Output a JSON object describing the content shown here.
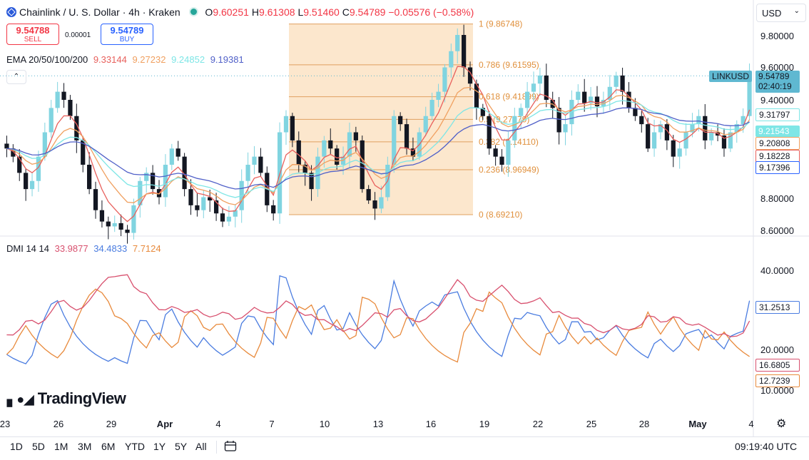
{
  "header": {
    "symbol": "Chainlink / U. S. Dollar · 4h · Kraken",
    "o_label": "O",
    "o_value": "9.60251",
    "h_label": "H",
    "h_value": "9.61308",
    "l_label": "L",
    "l_value": "9.51460",
    "c_label": "C",
    "c_value": "9.54789",
    "change": "−0.05576 (−0.58%)",
    "currency": "USD"
  },
  "trade": {
    "sell_price": "9.54788",
    "sell_label": "SELL",
    "spread": "0.00001",
    "buy_price": "9.54789",
    "buy_label": "BUY"
  },
  "ema_legend": {
    "label": "EMA 20/50/100/200",
    "v20": "9.33144",
    "v50": "9.27232",
    "v100": "9.24852",
    "v200": "9.19381"
  },
  "dmi_legend": {
    "label": "DMI 14 14",
    "adx": "33.9877",
    "plus_di": "34.4833",
    "minus_di": "7.7124"
  },
  "price_axis": [
    "9.80000",
    "9.60000",
    "9.40000",
    "9.20000",
    "9.00000",
    "8.80000",
    "8.60000"
  ],
  "dmi_axis": [
    "40.0000",
    "20.0000",
    "10.0000"
  ],
  "time_axis": [
    "23",
    "26",
    "29",
    "Apr",
    "4",
    "7",
    "10",
    "13",
    "16",
    "19",
    "22",
    "25",
    "28",
    "May",
    "4"
  ],
  "price_tags": {
    "symbol": "LINKUSD",
    "last": "9.54789",
    "countdown": "02:40:19",
    "ema20": "9.31797",
    "ema50": "9.21543",
    "ema100": "9.20808",
    "ema200": "9.18228",
    "extra": "9.17396"
  },
  "dmi_tags": {
    "plus_di": "31.2513",
    "adx": "16.6805",
    "minus_di": "12.7239"
  },
  "fib_levels": [
    {
      "ratio": "1",
      "price": "9.86748",
      "label": "1 (9.86748)"
    },
    {
      "ratio": "0.786",
      "price": "9.61595",
      "label": "0.786 (9.61595)"
    },
    {
      "ratio": "0.618",
      "price": "9.41899",
      "label": "0.618 (9.41899)"
    },
    {
      "ratio": "0.5",
      "price": "9.27979",
      "label": "0.5 (9.27979)"
    },
    {
      "ratio": "0.382",
      "price": "9.14110",
      "label": "0.382 (9.14110)"
    },
    {
      "ratio": "0.236",
      "price": "8.96949",
      "label": "0.236 (8.96949)"
    },
    {
      "ratio": "0",
      "price": "8.69210",
      "label": "0 (8.69210)"
    }
  ],
  "toolbar": {
    "ranges": [
      "1D",
      "5D",
      "1M",
      "3M",
      "6M",
      "YTD",
      "1Y",
      "5Y",
      "All"
    ],
    "clock": "09:19:40 UTC"
  },
  "logo_text": "TradingView",
  "colors": {
    "up": "#26a69a",
    "down": "#ef5350",
    "candle_up": "#80d4e0",
    "candle_down": "#131722",
    "ema20": "#e8605c",
    "ema50": "#f0a060",
    "ema100": "#7ee6e6",
    "ema200": "#5060c8",
    "plus_di": "#4a7ce0",
    "adx": "#d8506e",
    "minus_di": "#e88a3c",
    "fib_fill": "#fbe3c4"
  },
  "chart_data": {
    "type": "candlestick",
    "symbol": "LINKUSD",
    "interval": "4h",
    "ylim": [
      8.58,
      9.95
    ],
    "close_series": [
      9.1,
      9.05,
      8.95,
      8.85,
      8.9,
      9.05,
      9.2,
      9.35,
      9.45,
      9.4,
      9.3,
      9.15,
      9.0,
      8.85,
      8.72,
      8.65,
      8.62,
      8.64,
      8.6,
      8.58,
      8.75,
      8.9,
      8.95,
      8.85,
      8.8,
      9.0,
      9.1,
      9.05,
      8.85,
      8.75,
      8.72,
      8.8,
      8.78,
      8.7,
      8.65,
      8.68,
      8.72,
      8.9,
      9.0,
      9.05,
      8.95,
      8.75,
      8.7,
      9.2,
      9.3,
      9.15,
      9.0,
      8.95,
      8.85,
      9.05,
      9.15,
      9.1,
      9.0,
      9.05,
      9.2,
      9.15,
      8.85,
      8.78,
      8.73,
      8.8,
      9.0,
      9.3,
      9.25,
      9.1,
      9.05,
      9.2,
      9.3,
      9.4,
      9.45,
      9.6,
      9.7,
      9.8,
      9.6,
      9.5,
      9.35,
      9.3,
      9.1,
      9.05,
      9.0,
      9.15,
      9.3,
      9.35,
      9.45,
      9.5,
      9.55,
      9.4,
      9.35,
      9.2,
      9.25,
      9.4,
      9.45,
      9.38,
      9.42,
      9.36,
      9.4,
      9.48,
      9.55,
      9.45,
      9.35,
      9.3,
      9.25,
      9.1,
      9.2,
      9.25,
      9.15,
      9.05,
      9.1,
      9.2,
      9.25,
      9.3,
      9.15,
      9.2,
      9.18,
      9.1,
      9.2,
      9.25,
      9.3,
      9.55
    ],
    "fib_retracement": {
      "high": 9.86748,
      "low": 8.6921
    },
    "dmi": {
      "period": 14,
      "adx_last": 16.6805,
      "plus_di_last": 31.2513,
      "minus_di_last": 12.7239,
      "ylim": [
        5,
        48
      ]
    }
  }
}
